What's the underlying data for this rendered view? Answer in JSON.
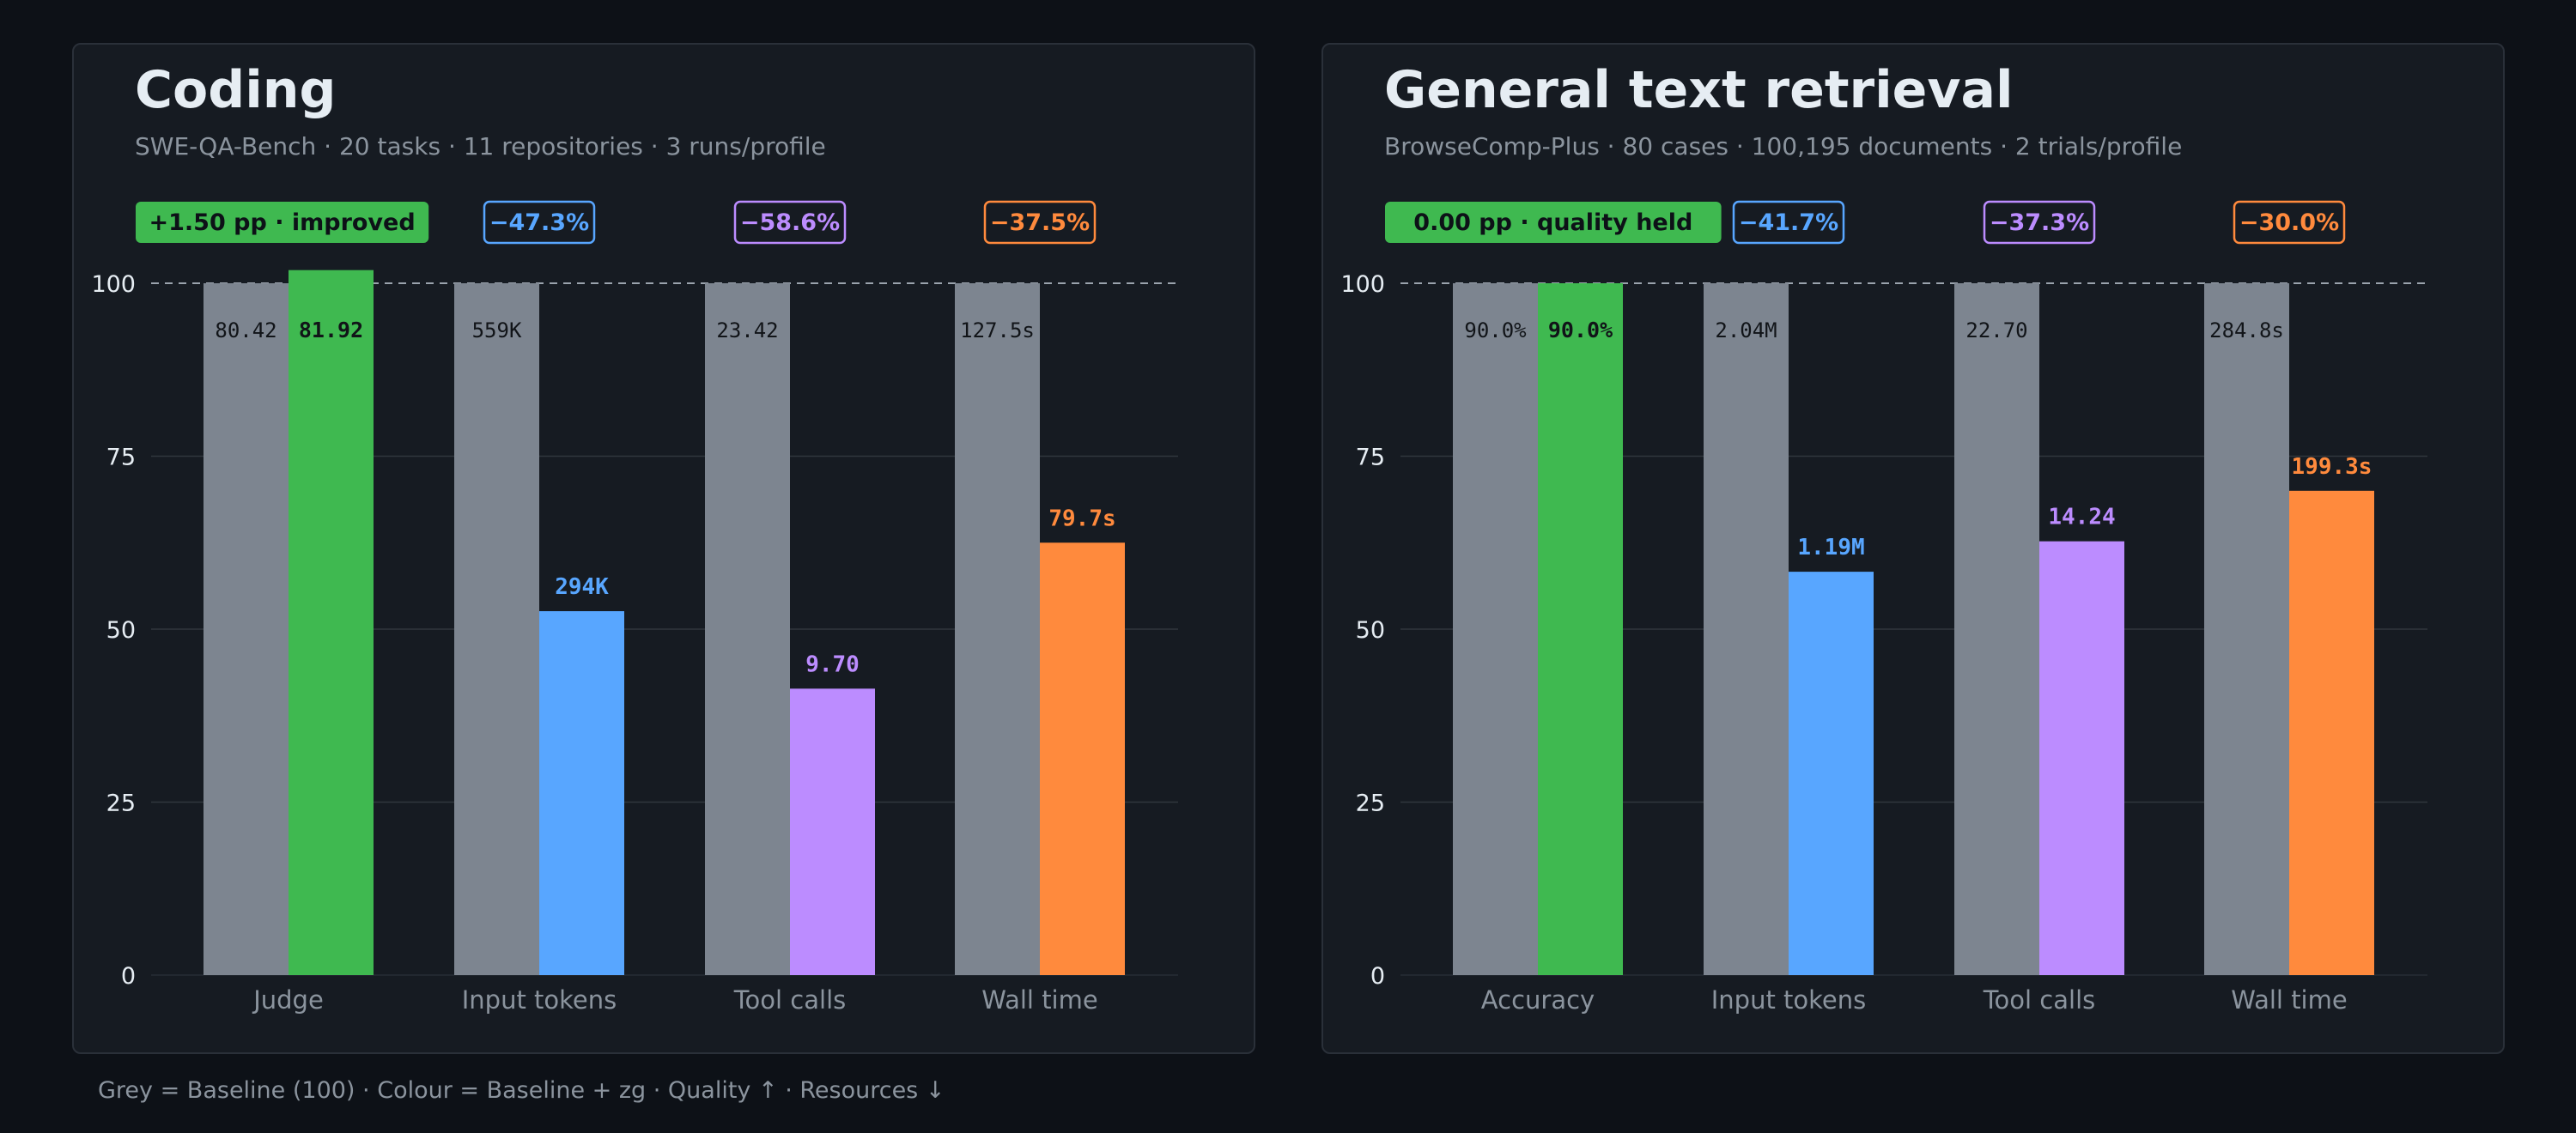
{
  "colors": {
    "background": "#0d1117",
    "panel": "#161b22",
    "baseline": "#7d8590",
    "quality": "#3fb950",
    "tokens": "#58a6ff",
    "tool_calls": "#bc8cff",
    "wall_time": "#ff8a3d",
    "gridline": "#30363d",
    "text_muted": "#8b949e"
  },
  "footer": "Grey = Baseline (100) · Colour = Baseline + zg · Quality ↑ · Resources ↓",
  "chart_data": [
    {
      "type": "bar",
      "title": "Coding",
      "subtitle": "SWE-QA-Bench · 20 tasks · 11 repositories · 3 runs/profile",
      "categories": [
        "Judge",
        "Input tokens",
        "Tool calls",
        "Wall time"
      ],
      "ylim": [
        0,
        100
      ],
      "yticks": [
        0,
        25,
        50,
        75,
        100
      ],
      "reference_line": 100,
      "grid": true,
      "series": [
        {
          "name": "Baseline",
          "values": [
            100,
            100,
            100,
            100
          ],
          "labels": [
            "80.42",
            "559K",
            "23.42",
            "127.5s"
          ]
        },
        {
          "name": "Baseline + zg",
          "values": [
            101.9,
            52.6,
            41.4,
            62.5
          ],
          "labels": [
            "81.92",
            "294K",
            "9.70",
            "79.7s"
          ]
        }
      ],
      "badges": [
        "+1.50 pp · improved",
        "−47.3%",
        "−58.6%",
        "−37.5%"
      ]
    },
    {
      "type": "bar",
      "title": "General text retrieval",
      "subtitle": "BrowseComp-Plus · 80 cases · 100,195 documents · 2 trials/profile",
      "categories": [
        "Accuracy",
        "Input tokens",
        "Tool calls",
        "Wall time"
      ],
      "ylim": [
        0,
        100
      ],
      "yticks": [
        0,
        25,
        50,
        75,
        100
      ],
      "reference_line": 100,
      "grid": true,
      "series": [
        {
          "name": "Baseline",
          "values": [
            100,
            100,
            100,
            100
          ],
          "labels": [
            "90.0%",
            "2.04M",
            "22.70",
            "284.8s"
          ]
        },
        {
          "name": "Baseline + zg",
          "values": [
            100,
            58.3,
            62.7,
            70.0
          ],
          "labels": [
            "90.0%",
            "1.19M",
            "14.24",
            "199.3s"
          ]
        }
      ],
      "badges": [
        "0.00 pp · quality held",
        "−41.7%",
        "−37.3%",
        "−30.0%"
      ]
    }
  ]
}
